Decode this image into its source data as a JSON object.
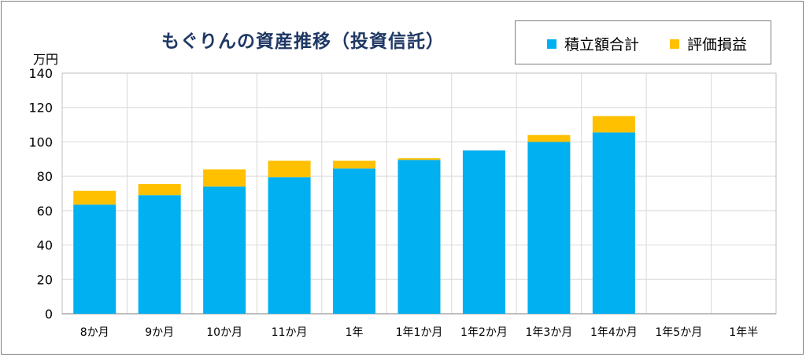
{
  "chart_data": {
    "type": "bar",
    "stacked": true,
    "title": "もぐりんの資産推移（投資信託）",
    "ylabel": "万円",
    "ylim": [
      0,
      140
    ],
    "yticks": [
      0,
      20,
      40,
      60,
      80,
      100,
      120,
      140
    ],
    "categories": [
      "8か月",
      "9か月",
      "10か月",
      "11か月",
      "1年",
      "1年1か月",
      "1年2か月",
      "1年3か月",
      "1年4か月",
      "1年5か月",
      "1年半"
    ],
    "series": [
      {
        "name": "積立額合計",
        "color": "#00b0f0",
        "values": [
          63.5,
          69,
          74,
          79.5,
          84.5,
          89.5,
          95,
          100,
          105.5,
          null,
          null
        ]
      },
      {
        "name": "評価損益",
        "color": "#ffc000",
        "values": [
          8,
          6.5,
          10,
          9.5,
          4.5,
          1,
          0,
          4,
          9.5,
          null,
          null
        ]
      }
    ],
    "grid": true,
    "legend_position": "top-right"
  }
}
